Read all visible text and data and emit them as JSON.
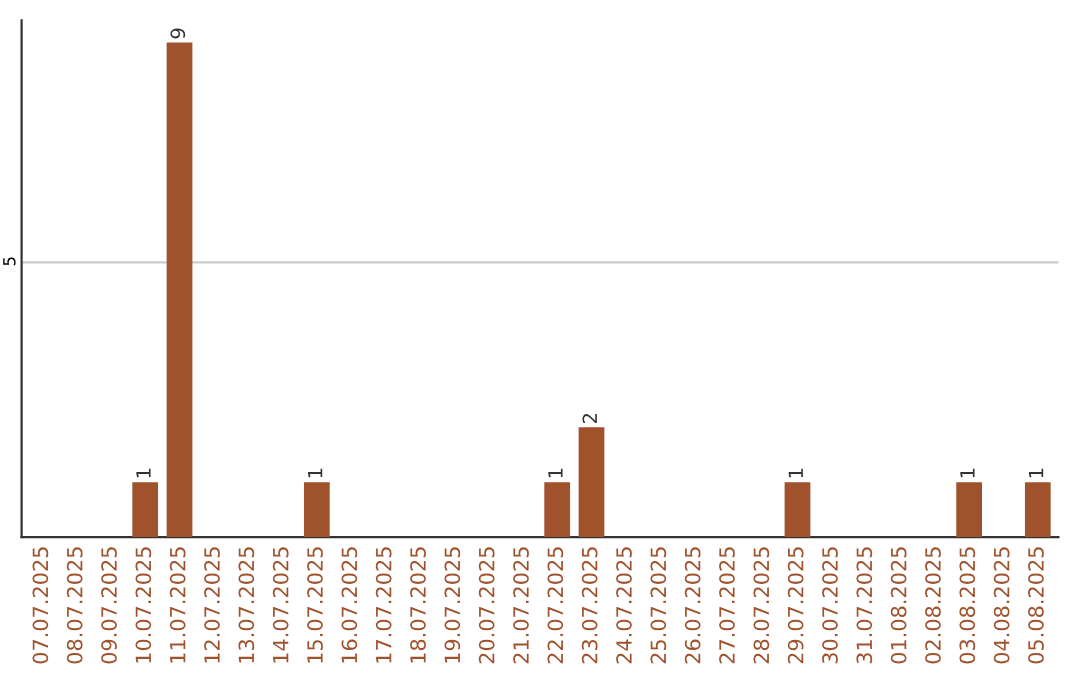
{
  "chart_data": {
    "type": "bar",
    "categories": [
      "07.07.2025",
      "08.07.2025",
      "09.07.2025",
      "10.07.2025",
      "11.07.2025",
      "12.07.2025",
      "13.07.2025",
      "14.07.2025",
      "15.07.2025",
      "16.07.2025",
      "17.07.2025",
      "18.07.2025",
      "19.07.2025",
      "20.07.2025",
      "21.07.2025",
      "22.07.2025",
      "23.07.2025",
      "24.07.2025",
      "25.07.2025",
      "26.07.2025",
      "27.07.2025",
      "28.07.2025",
      "29.07.2025",
      "30.07.2025",
      "31.07.2025",
      "01.08.2025",
      "02.08.2025",
      "03.08.2025",
      "04.08.2025",
      "05.08.2025"
    ],
    "values": [
      0,
      0,
      0,
      1,
      9,
      0,
      0,
      0,
      1,
      0,
      0,
      0,
      0,
      0,
      0,
      1,
      2,
      0,
      0,
      0,
      0,
      0,
      1,
      0,
      0,
      0,
      0,
      1,
      0,
      1
    ],
    "value_labels": [
      null,
      null,
      null,
      "1",
      "9",
      null,
      null,
      null,
      "1",
      null,
      null,
      null,
      null,
      null,
      null,
      "1",
      "2",
      null,
      null,
      null,
      null,
      null,
      "1",
      null,
      null,
      null,
      null,
      "1",
      null,
      "1"
    ],
    "color": "#a0522d",
    "ylim": [
      0,
      9.4
    ],
    "yticks": [
      5
    ],
    "grid": "y"
  }
}
